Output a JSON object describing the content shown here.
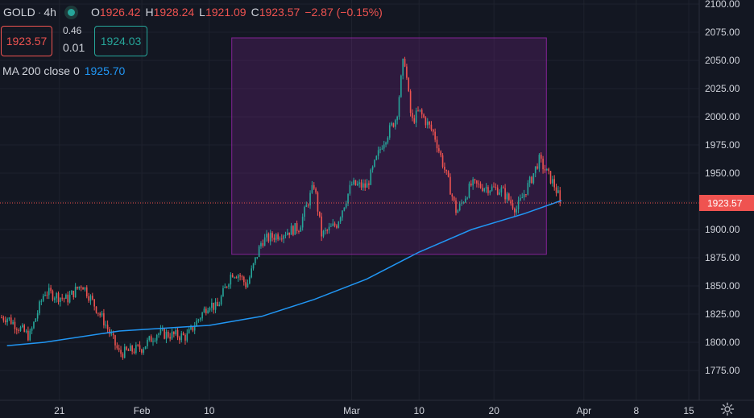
{
  "legend": {
    "symbol": "GOLD",
    "separator": "·",
    "timeframe": "4h",
    "open_key": "O",
    "open": "1926.42",
    "high_key": "H",
    "high": "1928.24",
    "low_key": "L",
    "low": "1921.09",
    "close_key": "C",
    "close": "1923.57",
    "change": "−2.87 (−0.15%)"
  },
  "quote": {
    "bid": "1923.57",
    "ask": "1924.03",
    "spread_top": "0.46",
    "spread_bottom": "0.01"
  },
  "ma_legend": {
    "label": "MA 200 close 0",
    "value": "1925.70"
  },
  "price_axis": {
    "ticks": [
      "2100.00",
      "2075.00",
      "2050.00",
      "2025.00",
      "2000.00",
      "1975.00",
      "1950.00",
      "1925.00",
      "1900.00",
      "1875.00",
      "1850.00",
      "1825.00",
      "1800.00",
      "1775.00"
    ],
    "last_price_label": "1923.57"
  },
  "time_axis": {
    "ticks": [
      "21",
      "Feb",
      "10",
      "Mar",
      "10",
      "20",
      "Apr",
      "8",
      "15"
    ]
  },
  "colors": {
    "background": "#131722",
    "up": "#26a69a",
    "down": "#ef5350",
    "ma": "#2196f3",
    "rectangle": "#9c27b0"
  },
  "chart_data": {
    "type": "candlestick",
    "symbol": "GOLD",
    "interval": "4h",
    "ylim": [
      1760,
      2100
    ],
    "x_ticks": [
      "21",
      "Feb",
      "10",
      "Mar",
      "10",
      "20",
      "Apr",
      "8",
      "15"
    ],
    "y_ticks": [
      1775,
      1800,
      1825,
      1850,
      1875,
      1900,
      1925,
      1950,
      1975,
      2000,
      2025,
      2050,
      2075,
      2100
    ],
    "last_price": 1923.57,
    "anchors": [
      {
        "date": "Jan 14",
        "price": 1822
      },
      {
        "date": "Jan 17",
        "price": 1805
      },
      {
        "date": "Jan 19",
        "price": 1845
      },
      {
        "date": "Jan 22",
        "price": 1838
      },
      {
        "date": "Jan 24",
        "price": 1852
      },
      {
        "date": "Jan 27",
        "price": 1818
      },
      {
        "date": "Jan 29",
        "price": 1790
      },
      {
        "date": "Feb 1",
        "price": 1795
      },
      {
        "date": "Feb 3",
        "price": 1808
      },
      {
        "date": "Feb 7",
        "price": 1805
      },
      {
        "date": "Feb 10",
        "price": 1835
      },
      {
        "date": "Feb 11",
        "price": 1830
      },
      {
        "date": "Feb 13",
        "price": 1862
      },
      {
        "date": "Feb 14",
        "price": 1860
      },
      {
        "date": "Feb 15",
        "price": 1850
      },
      {
        "date": "Feb 17",
        "price": 1890
      },
      {
        "date": "Feb 19",
        "price": 1895
      },
      {
        "date": "Feb 22",
        "price": 1902
      },
      {
        "date": "Feb 24",
        "price": 1940
      },
      {
        "date": "Feb 25",
        "price": 1895
      },
      {
        "date": "Feb 27",
        "price": 1905
      },
      {
        "date": "Mar 1",
        "price": 1940
      },
      {
        "date": "Mar 3",
        "price": 1938
      },
      {
        "date": "Mar 5",
        "price": 1975
      },
      {
        "date": "Mar 7",
        "price": 2000
      },
      {
        "date": "Mar 8",
        "price": 2055
      },
      {
        "date": "Mar 9",
        "price": 1995
      },
      {
        "date": "Mar 10",
        "price": 2005
      },
      {
        "date": "Mar 12",
        "price": 1985
      },
      {
        "date": "Mar 14",
        "price": 1940
      },
      {
        "date": "Mar 15",
        "price": 1915
      },
      {
        "date": "Mar 17",
        "price": 1940
      },
      {
        "date": "Mar 21",
        "price": 1935
      },
      {
        "date": "Mar 23",
        "price": 1918
      },
      {
        "date": "Mar 25",
        "price": 1945
      },
      {
        "date": "Mar 26",
        "price": 1962
      },
      {
        "date": "Mar 28",
        "price": 1940
      },
      {
        "date": "Mar 29",
        "price": 1923.57
      }
    ],
    "series": [
      {
        "name": "MA 200 close 0",
        "type": "line",
        "points": [
          {
            "date": "Jan 14",
            "price": 1797
          },
          {
            "date": "Jan 19",
            "price": 1800
          },
          {
            "date": "Jan 29",
            "price": 1810
          },
          {
            "date": "Feb 10",
            "price": 1815
          },
          {
            "date": "Feb 17",
            "price": 1823
          },
          {
            "date": "Feb 24",
            "price": 1838
          },
          {
            "date": "Mar 3",
            "price": 1856
          },
          {
            "date": "Mar 10",
            "price": 1880
          },
          {
            "date": "Mar 17",
            "price": 1900
          },
          {
            "date": "Mar 24",
            "price": 1914
          },
          {
            "date": "Mar 29",
            "price": 1925.7
          }
        ]
      }
    ],
    "annotations": [
      {
        "type": "rectangle",
        "from_date": "Feb 13",
        "to_date": "Mar 27",
        "price_low": 1878,
        "price_high": 2070
      }
    ]
  }
}
